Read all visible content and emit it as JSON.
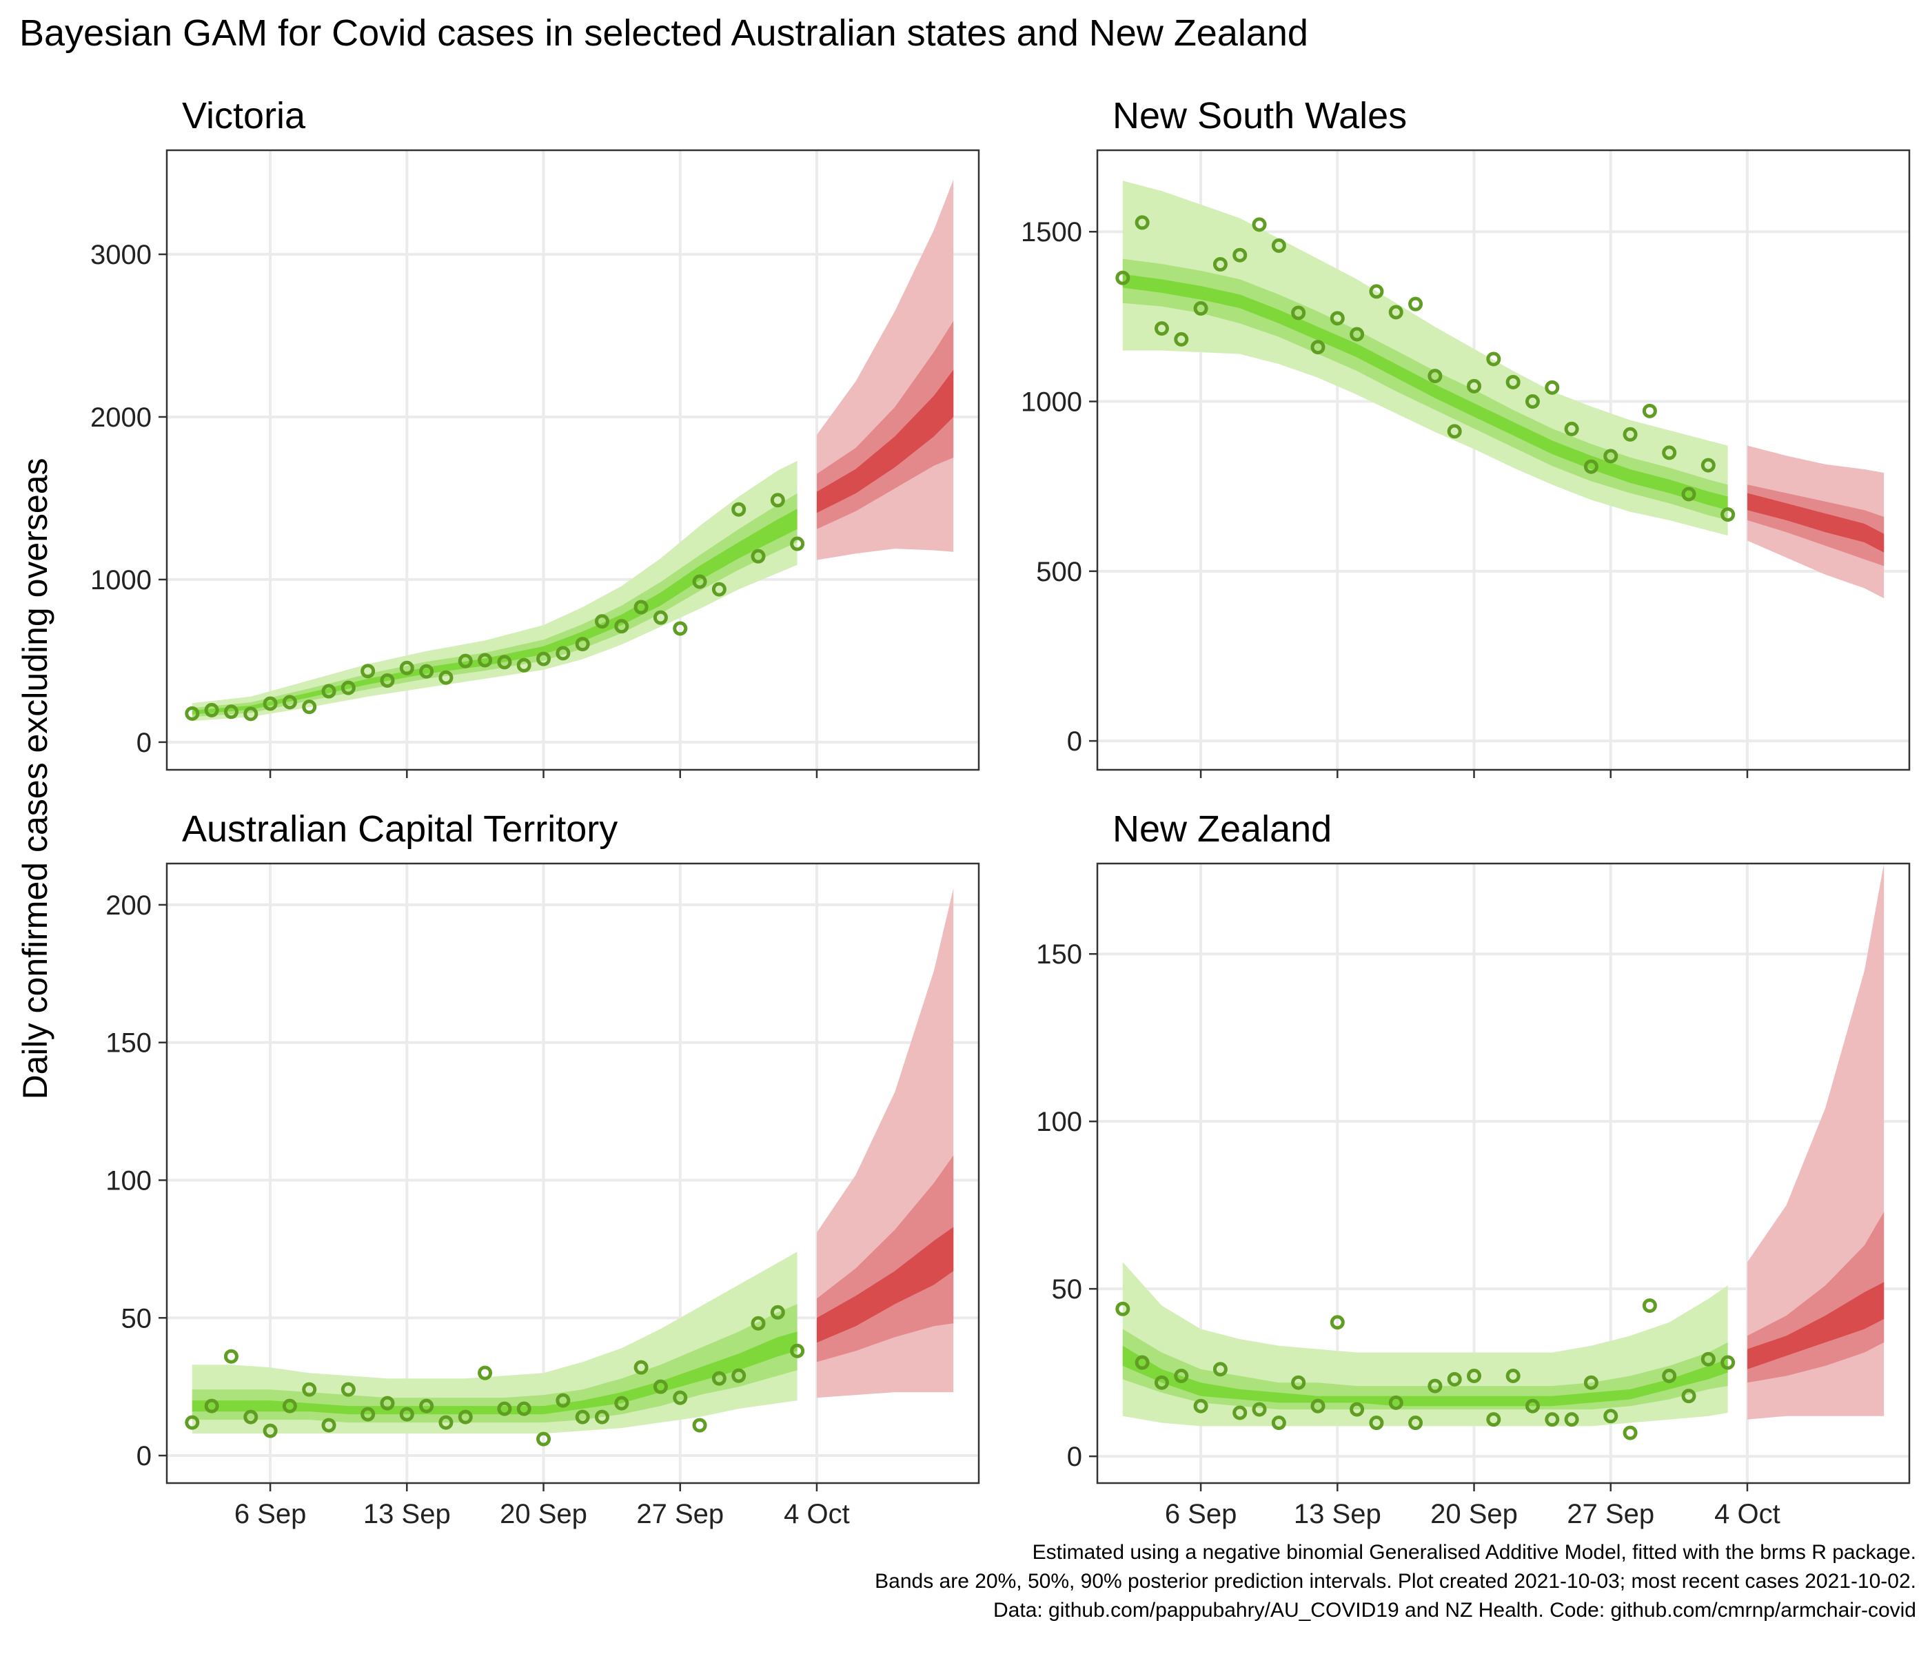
{
  "title": "Bayesian GAM for Covid cases in selected Australian states and New Zealand",
  "ylabel": "Daily confirmed cases excluding overseas",
  "caption": [
    "Estimated using a negative binomial Generalised Additive Model, fitted with the brms R package.",
    "Bands are 20%, 50%, 90% posterior prediction intervals. Plot created 2021-10-03; most recent cases 2021-10-02.",
    "Data: github.com/pappubahry/AU_COVID19 and NZ Health. Code: github.com/cmrnp/armchair-covid"
  ],
  "colors": {
    "fit_band_90": "#d3efb6",
    "fit_band_50": "#abe27b",
    "fit_band_20": "#7fd83a",
    "forecast_band_90": "#efbcbd",
    "forecast_band_50": "#e4898b",
    "forecast_band_20": "#d84c4e",
    "points": "#5f9e22",
    "grid": "#ebebeb",
    "panel_border": "#333333"
  },
  "chart_data": [
    {
      "type": "area",
      "title": "Victoria",
      "x_tick_labels": [
        "6 Sep",
        "13 Sep",
        "20 Sep",
        "27 Sep",
        "4 Oct"
      ],
      "x_ticks_day": [
        6,
        13,
        20,
        27,
        34
      ],
      "x_range_day": [
        0.7,
        42.3
      ],
      "ylim": [
        -170,
        3640
      ],
      "y_ticks": [
        0,
        1000,
        2000,
        3000
      ],
      "observed": {
        "day": [
          2,
          3,
          4,
          5,
          6,
          7,
          8,
          9,
          10,
          11,
          12,
          13,
          14,
          15,
          16,
          17,
          18,
          19,
          20,
          21,
          22,
          23,
          24,
          25,
          26,
          27,
          28,
          29,
          30,
          31,
          32,
          33
        ],
        "cases": [
          176,
          197,
          187,
          174,
          237,
          246,
          217,
          313,
          334,
          437,
          379,
          456,
          435,
          397,
          499,
          504,
          492,
          473,
          512,
          547,
          603,
          743,
          713,
          830,
          766,
          699,
          987,
          940,
          1431,
          1143,
          1488,
          1220
        ]
      },
      "fit": {
        "day": [
          2,
          5,
          8,
          11,
          14,
          17,
          20,
          22,
          24,
          26,
          28,
          30,
          32,
          33
        ],
        "median": [
          180,
          210,
          290,
          370,
          440,
          490,
          565,
          650,
          750,
          880,
          1040,
          1180,
          1310,
          1370
        ],
        "lo20": [
          170,
          200,
          275,
          355,
          420,
          470,
          540,
          620,
          720,
          840,
          995,
          1130,
          1250,
          1310
        ],
        "hi20": [
          195,
          225,
          305,
          390,
          460,
          515,
          590,
          680,
          785,
          920,
          1085,
          1230,
          1370,
          1435
        ],
        "lo50": [
          155,
          180,
          255,
          325,
          390,
          440,
          500,
          575,
          670,
          790,
          930,
          1060,
          1175,
          1230
        ],
        "hi50": [
          210,
          245,
          330,
          420,
          495,
          550,
          630,
          725,
          840,
          985,
          1150,
          1310,
          1460,
          1530
        ],
        "lo90": [
          130,
          155,
          215,
          280,
          335,
          390,
          445,
          510,
          600,
          710,
          820,
          940,
          1040,
          1090
        ],
        "hi90": [
          240,
          280,
          380,
          480,
          560,
          625,
          720,
          830,
          960,
          1130,
          1330,
          1510,
          1670,
          1730
        ]
      },
      "forecast": {
        "day": [
          34,
          36,
          38,
          40,
          41
        ],
        "median": [
          1470,
          1600,
          1780,
          2000,
          2150
        ],
        "lo20": [
          1410,
          1530,
          1690,
          1880,
          2000
        ],
        "hi20": [
          1540,
          1680,
          1880,
          2130,
          2290
        ],
        "lo50": [
          1310,
          1420,
          1560,
          1700,
          1750
        ],
        "hi50": [
          1650,
          1810,
          2060,
          2400,
          2590
        ],
        "lo90": [
          1120,
          1160,
          1190,
          1180,
          1170
        ],
        "hi90": [
          1890,
          2220,
          2650,
          3150,
          3460
        ]
      }
    },
    {
      "type": "area",
      "title": "New South Wales",
      "x_tick_labels": [
        "6 Sep",
        "13 Sep",
        "20 Sep",
        "27 Sep",
        "4 Oct"
      ],
      "x_ticks_day": [
        6,
        13,
        20,
        27,
        34
      ],
      "x_range_day": [
        0.7,
        42.3
      ],
      "ylim": [
        -85,
        1740
      ],
      "y_ticks": [
        0,
        500,
        1000,
        1500
      ],
      "observed": {
        "day": [
          2,
          3,
          4,
          5,
          6,
          7,
          8,
          9,
          10,
          11,
          12,
          13,
          14,
          15,
          16,
          17,
          18,
          19,
          20,
          21,
          22,
          23,
          24,
          25,
          26,
          27,
          28,
          29,
          30,
          31,
          32,
          33
        ],
        "cases": [
          1364,
          1527,
          1215,
          1183,
          1274,
          1404,
          1431,
          1521,
          1459,
          1261,
          1160,
          1245,
          1198,
          1324,
          1263,
          1287,
          1075,
          912,
          1045,
          1125,
          1057,
          1000,
          1041,
          919,
          808,
          839,
          903,
          972,
          849,
          727,
          812,
          667
        ]
      },
      "fit": {
        "day": [
          2,
          4,
          6,
          8,
          10,
          12,
          14,
          16,
          18,
          20,
          22,
          24,
          26,
          28,
          30,
          32,
          33
        ],
        "median": [
          1355,
          1340,
          1320,
          1295,
          1250,
          1200,
          1150,
          1090,
          1030,
          975,
          920,
          865,
          820,
          780,
          750,
          715,
          700
        ],
        "lo20": [
          1335,
          1320,
          1300,
          1275,
          1230,
          1180,
          1130,
          1070,
          1010,
          955,
          900,
          845,
          800,
          760,
          730,
          695,
          680
        ],
        "hi20": [
          1375,
          1360,
          1340,
          1315,
          1270,
          1220,
          1170,
          1110,
          1050,
          995,
          940,
          885,
          840,
          800,
          770,
          735,
          720
        ],
        "lo50": [
          1290,
          1280,
          1260,
          1230,
          1190,
          1140,
          1090,
          1030,
          975,
          920,
          865,
          810,
          765,
          730,
          700,
          665,
          650
        ],
        "hi50": [
          1420,
          1405,
          1385,
          1360,
          1315,
          1265,
          1210,
          1150,
          1090,
          1035,
          975,
          920,
          875,
          835,
          805,
          770,
          755
        ],
        "lo90": [
          1150,
          1150,
          1145,
          1140,
          1110,
          1070,
          1020,
          965,
          910,
          860,
          805,
          755,
          710,
          675,
          650,
          620,
          605
        ],
        "hi90": [
          1650,
          1620,
          1580,
          1540,
          1480,
          1420,
          1360,
          1290,
          1220,
          1155,
          1090,
          1030,
          985,
          945,
          915,
          885,
          870
        ]
      },
      "forecast": {
        "day": [
          34,
          36,
          38,
          40,
          41
        ],
        "median": [
          705,
          675,
          645,
          615,
          580
        ],
        "lo20": [
          680,
          650,
          615,
          585,
          555
        ],
        "hi20": [
          730,
          700,
          670,
          640,
          610
        ],
        "lo50": [
          650,
          615,
          575,
          535,
          515
        ],
        "hi50": [
          755,
          730,
          705,
          680,
          660
        ],
        "lo90": [
          590,
          540,
          490,
          450,
          420
        ],
        "hi90": [
          870,
          840,
          815,
          800,
          790
        ]
      }
    },
    {
      "type": "area",
      "title": "Australian Capital Territory",
      "x_tick_labels": [
        "6 Sep",
        "13 Sep",
        "20 Sep",
        "27 Sep",
        "4 Oct"
      ],
      "x_ticks_day": [
        6,
        13,
        20,
        27,
        34
      ],
      "x_range_day": [
        0.7,
        42.3
      ],
      "ylim": [
        -10,
        215
      ],
      "y_ticks": [
        0,
        50,
        100,
        150,
        200
      ],
      "observed": {
        "day": [
          2,
          3,
          4,
          5,
          6,
          7,
          8,
          9,
          10,
          11,
          12,
          13,
          14,
          15,
          16,
          17,
          18,
          19,
          20,
          21,
          22,
          23,
          24,
          25,
          26,
          27,
          28,
          29,
          30,
          31,
          32,
          33
        ],
        "cases": [
          12,
          18,
          36,
          14,
          9,
          18,
          24,
          11,
          24,
          15,
          19,
          15,
          18,
          12,
          14,
          30,
          17,
          17,
          6,
          20,
          14,
          14,
          19,
          32,
          25,
          21,
          11,
          28,
          29,
          48,
          52,
          38
        ]
      },
      "fit": {
        "day": [
          2,
          4,
          6,
          8,
          10,
          12,
          14,
          16,
          18,
          20,
          22,
          24,
          26,
          28,
          30,
          32,
          33
        ],
        "median": [
          18,
          18,
          18,
          17,
          17,
          16,
          16,
          16,
          16,
          17,
          18,
          21,
          25,
          30,
          34,
          39,
          41
        ],
        "lo20": [
          16,
          16,
          16,
          16,
          15,
          15,
          15,
          15,
          15,
          15,
          17,
          19,
          23,
          27,
          31,
          36,
          38
        ],
        "hi20": [
          20,
          20,
          20,
          19,
          18,
          18,
          18,
          18,
          18,
          18,
          20,
          23,
          27,
          32,
          37,
          43,
          45
        ],
        "lo50": [
          13,
          13,
          13,
          13,
          12,
          12,
          12,
          12,
          12,
          12,
          13,
          15,
          18,
          22,
          25,
          29,
          31
        ],
        "hi50": [
          24,
          24,
          24,
          23,
          22,
          21,
          21,
          21,
          21,
          22,
          24,
          28,
          33,
          39,
          45,
          52,
          55
        ],
        "lo90": [
          8,
          8,
          8,
          8,
          8,
          8,
          8,
          8,
          8,
          8,
          9,
          10,
          12,
          14,
          17,
          19,
          20
        ],
        "hi90": [
          33,
          33,
          32,
          30,
          29,
          28,
          28,
          28,
          29,
          30,
          34,
          39,
          46,
          54,
          62,
          70,
          74
        ]
      },
      "forecast": {
        "day": [
          34,
          36,
          38,
          40,
          41
        ],
        "median": [
          45,
          52,
          60,
          70,
          76
        ],
        "lo20": [
          41,
          47,
          55,
          62,
          67
        ],
        "hi20": [
          50,
          58,
          67,
          78,
          83
        ],
        "lo50": [
          34,
          38,
          43,
          47,
          48
        ],
        "hi50": [
          57,
          68,
          82,
          99,
          109
        ],
        "lo90": [
          21,
          22,
          23,
          23,
          23
        ],
        "hi90": [
          81,
          102,
          132,
          176,
          206
        ]
      }
    },
    {
      "type": "area",
      "title": "New Zealand",
      "x_tick_labels": [
        "6 Sep",
        "13 Sep",
        "20 Sep",
        "27 Sep",
        "4 Oct"
      ],
      "x_ticks_day": [
        6,
        13,
        20,
        27,
        34
      ],
      "x_range_day": [
        0.7,
        42.3
      ],
      "ylim": [
        -8,
        177
      ],
      "y_ticks": [
        0,
        50,
        100,
        150
      ],
      "observed": {
        "day": [
          2,
          3,
          4,
          5,
          6,
          7,
          8,
          9,
          10,
          11,
          12,
          13,
          14,
          15,
          16,
          17,
          18,
          19,
          20,
          21,
          22,
          23,
          24,
          25,
          26,
          27,
          28,
          29,
          30,
          31,
          32,
          33
        ],
        "cases": [
          44,
          28,
          22,
          24,
          15,
          26,
          13,
          14,
          10,
          22,
          15,
          40,
          14,
          10,
          16,
          10,
          21,
          23,
          24,
          11,
          24,
          15,
          11,
          11,
          22,
          12,
          7,
          45,
          24,
          18,
          29,
          28
        ]
      },
      "fit": {
        "day": [
          2,
          4,
          6,
          8,
          10,
          12,
          14,
          16,
          18,
          20,
          22,
          24,
          26,
          28,
          30,
          32,
          33
        ],
        "median": [
          30,
          24,
          20,
          18,
          17,
          17,
          17,
          16,
          16,
          16,
          16,
          16,
          17,
          18,
          21,
          25,
          27
        ],
        "lo20": [
          27,
          22,
          18,
          17,
          16,
          16,
          16,
          15,
          15,
          15,
          15,
          15,
          16,
          17,
          20,
          23,
          25
        ],
        "hi20": [
          33,
          26,
          22,
          20,
          19,
          18,
          18,
          18,
          18,
          18,
          18,
          18,
          19,
          20,
          23,
          27,
          29
        ],
        "lo50": [
          23,
          19,
          16,
          15,
          14,
          14,
          14,
          14,
          14,
          14,
          14,
          14,
          14,
          15,
          17,
          20,
          21
        ],
        "hi50": [
          38,
          31,
          26,
          24,
          22,
          22,
          21,
          21,
          21,
          21,
          21,
          21,
          22,
          24,
          27,
          31,
          34
        ],
        "lo90": [
          12,
          10,
          9,
          9,
          9,
          9,
          9,
          9,
          9,
          9,
          9,
          9,
          9,
          10,
          11,
          12,
          13
        ],
        "hi90": [
          58,
          45,
          38,
          35,
          33,
          32,
          31,
          31,
          31,
          31,
          31,
          31,
          33,
          36,
          40,
          47,
          51
        ]
      },
      "forecast": {
        "day": [
          34,
          36,
          38,
          40,
          41
        ],
        "median": [
          29,
          33,
          38,
          44,
          47
        ],
        "lo20": [
          26,
          30,
          34,
          38,
          41
        ],
        "hi20": [
          32,
          36,
          42,
          49,
          52
        ],
        "lo50": [
          22,
          24,
          27,
          31,
          34
        ],
        "hi50": [
          36,
          42,
          51,
          63,
          73
        ],
        "lo90": [
          11,
          12,
          12,
          12,
          12
        ],
        "hi90": [
          58,
          75,
          104,
          145,
          177
        ]
      }
    }
  ]
}
